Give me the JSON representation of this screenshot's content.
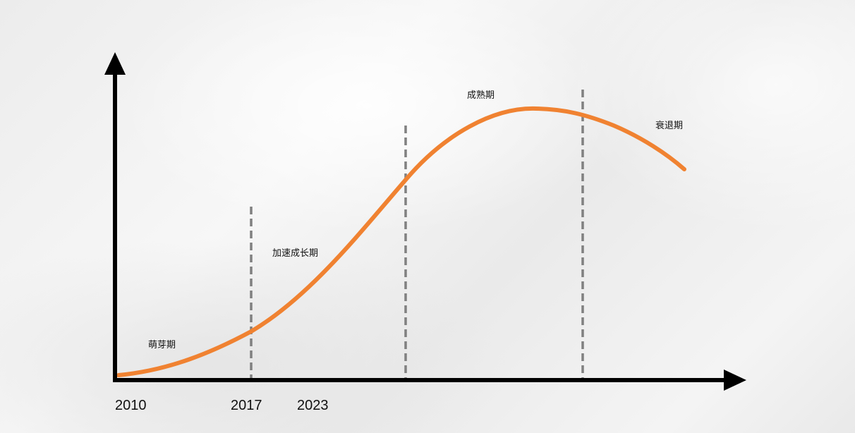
{
  "diagram": {
    "type": "lifecycle-curve",
    "colors": {
      "curve": "#F08231",
      "axis": "#000000",
      "divider": "#808080",
      "text": "#111111"
    },
    "phases": [
      {
        "id": "germination",
        "label": "萌芽期"
      },
      {
        "id": "growth",
        "label": "加速成长期"
      },
      {
        "id": "maturity",
        "label": "成熟期"
      },
      {
        "id": "decline",
        "label": "衰退期"
      }
    ],
    "x_tick_labels": [
      "2010",
      "2017",
      "2023"
    ]
  }
}
